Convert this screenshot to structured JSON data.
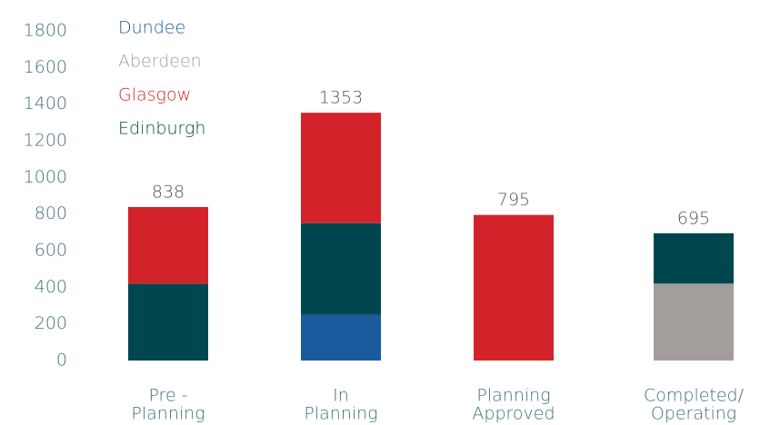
{
  "chart_data": {
    "type": "stacked_bar",
    "categories": [
      [
        "Pre -",
        "Planning"
      ],
      [
        "In",
        "Planning"
      ],
      [
        "Planning",
        "Approved"
      ],
      [
        "Completed/",
        "Operating"
      ]
    ],
    "series": [
      {
        "name": "Dundee",
        "color": "#1a5a9e",
        "values": [
          null,
          250,
          null,
          null
        ]
      },
      {
        "name": "Aberdeen",
        "color": "#a39e9b",
        "values": [
          null,
          null,
          null,
          420
        ]
      },
      {
        "name": "Glasgow",
        "color": "#d2232a",
        "values": [
          418,
          603,
          795,
          null
        ]
      },
      {
        "name": "Edinburgh",
        "color": "#00464f",
        "values": [
          420,
          500,
          null,
          275
        ]
      }
    ],
    "totals": [
      838,
      1353,
      795,
      695
    ],
    "ylim": [
      0,
      1800
    ],
    "yticks": [
      0,
      200,
      400,
      600,
      800,
      1000,
      1200,
      1400,
      1600,
      1800
    ],
    "grid": false,
    "legend": "upper left"
  }
}
